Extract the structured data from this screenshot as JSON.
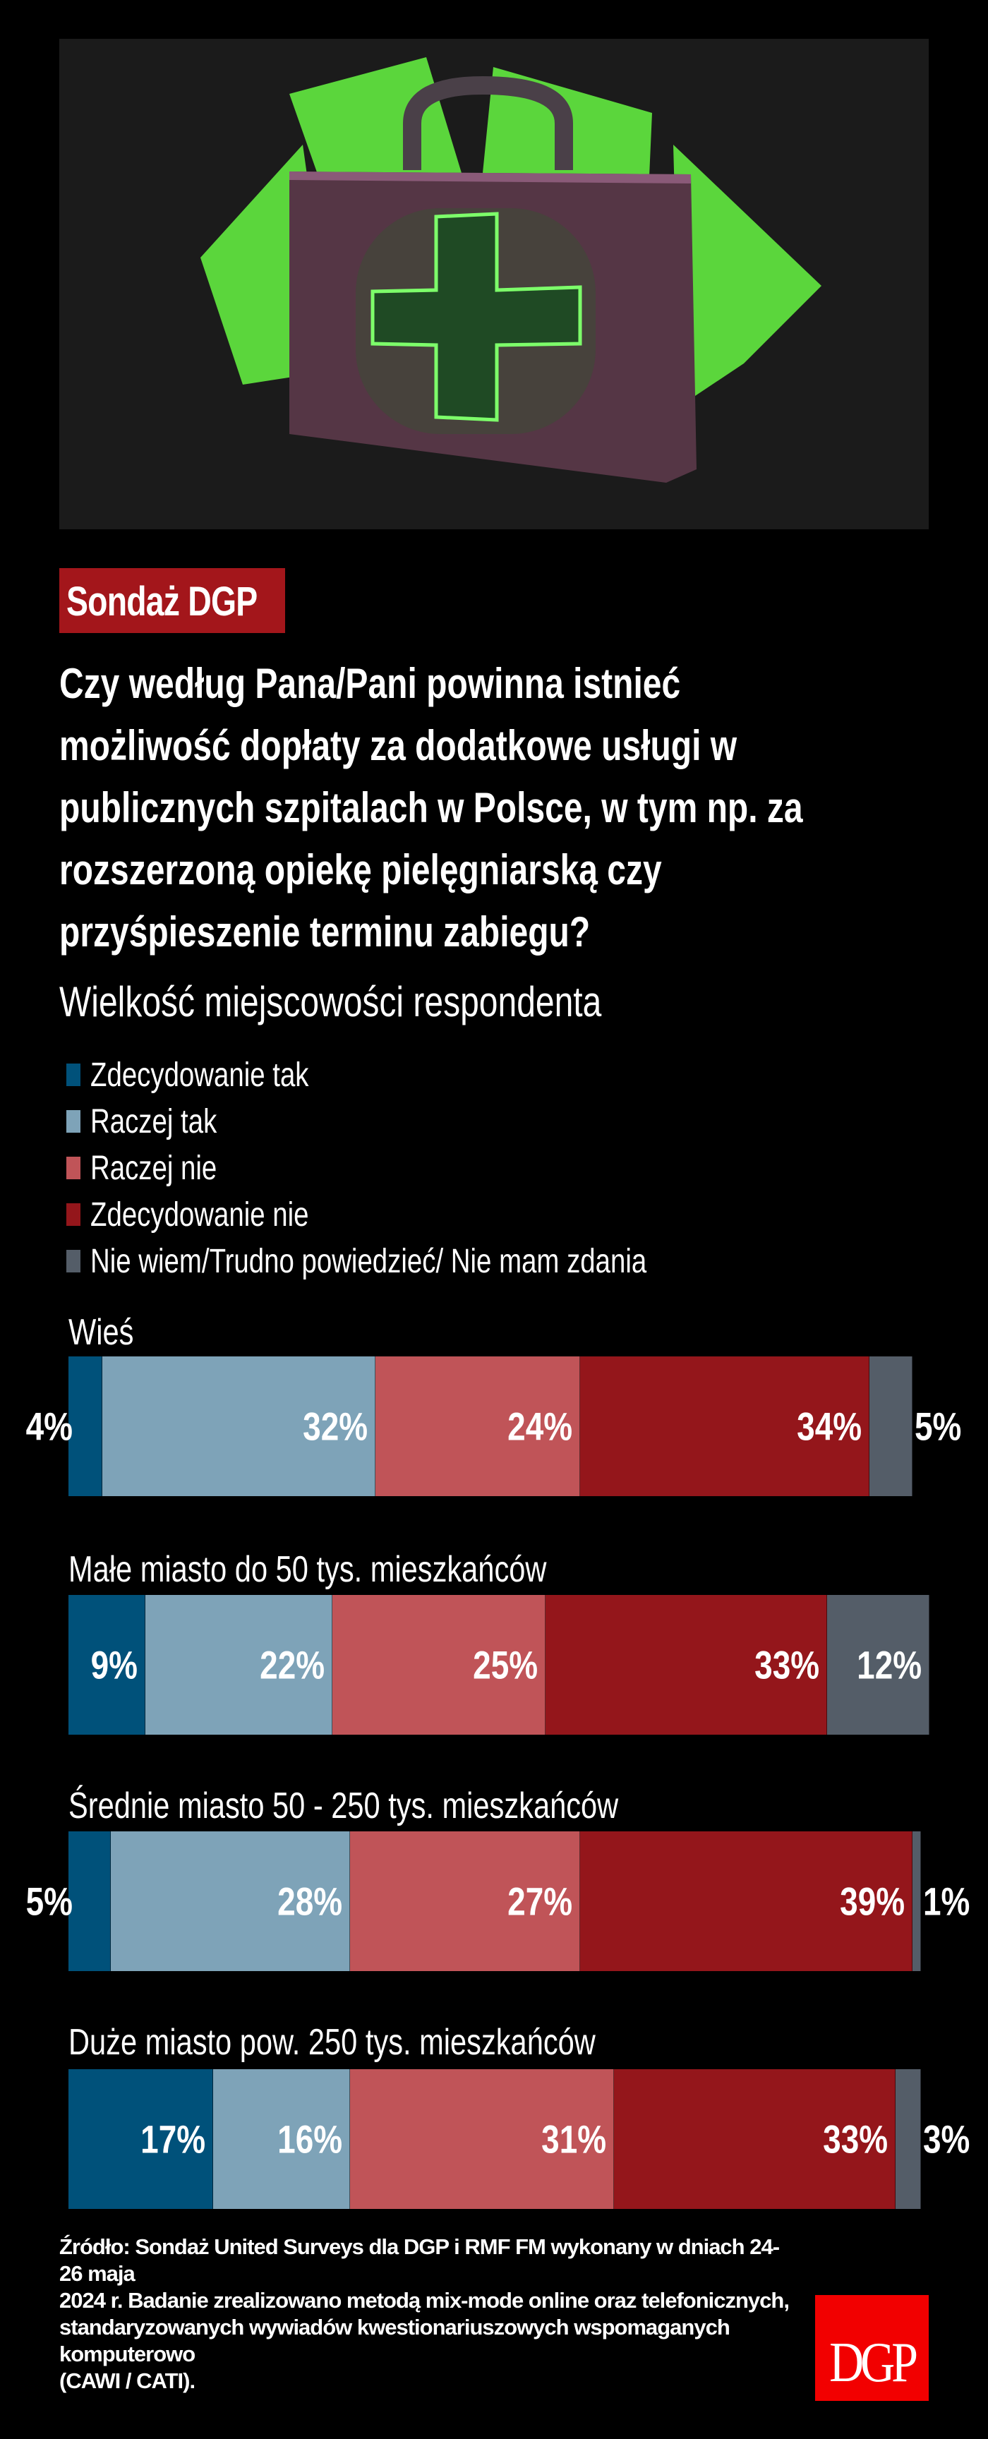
{
  "badge": "Sondaż DGP",
  "question": "Czy według Pana/Pani powinna istnieć\nmożliwość dopłaty za dodatkowe usługi w\npublicznych szpitalach w Polsce, w tym np. za\nrozszerzoną opiekę pielęgniarską czy\nprzyśpieszenie terminu zabiegu?",
  "subtitle": "Wielkość miejscowości respondenta",
  "footer": "Źródło: Sondaż United Surveys dla DGP i RMF FM wykonany w dniach 24-26 maja\n2024 r. Badanie zrealizowano metodą mix-mode online oraz telefonicznych,\nstandaryzowanych wywiadów kwestionariuszowych wspomaganych komputerowo\n(CAWI / CATI).",
  "logo_text": "DGP",
  "colors": {
    "badge": "#a3161b",
    "logo": "#f20000"
  },
  "chart_data": {
    "type": "bar",
    "orientation": "horizontal-stacked-100",
    "title": "Wielkość miejscowości respondenta",
    "legend_placement": "top-left",
    "grid": false,
    "unit": "%",
    "categories": [
      "Wieś",
      "Małe miasto do 50 tys. mieszkańców",
      "Średnie miasto 50 - 250 tys. mieszkańców",
      "Duże miasto pow. 250 tys. mieszkańców"
    ],
    "series": [
      {
        "name": "Zdecydowanie tak",
        "color": "#00517a",
        "values": [
          4,
          9,
          5,
          17
        ]
      },
      {
        "name": "Raczej tak",
        "color": "#7ea3b8",
        "values": [
          32,
          22,
          28,
          16
        ]
      },
      {
        "name": "Raczej nie",
        "color": "#c05458",
        "values": [
          24,
          25,
          27,
          31
        ]
      },
      {
        "name": "Zdecydowanie nie",
        "color": "#94161b",
        "values": [
          34,
          33,
          39,
          33
        ]
      },
      {
        "name": "Nie wiem/Trudno powiedzieć/ Nie mam zdania",
        "color": "#545d68",
        "values": [
          5,
          12,
          1,
          3
        ]
      }
    ]
  }
}
